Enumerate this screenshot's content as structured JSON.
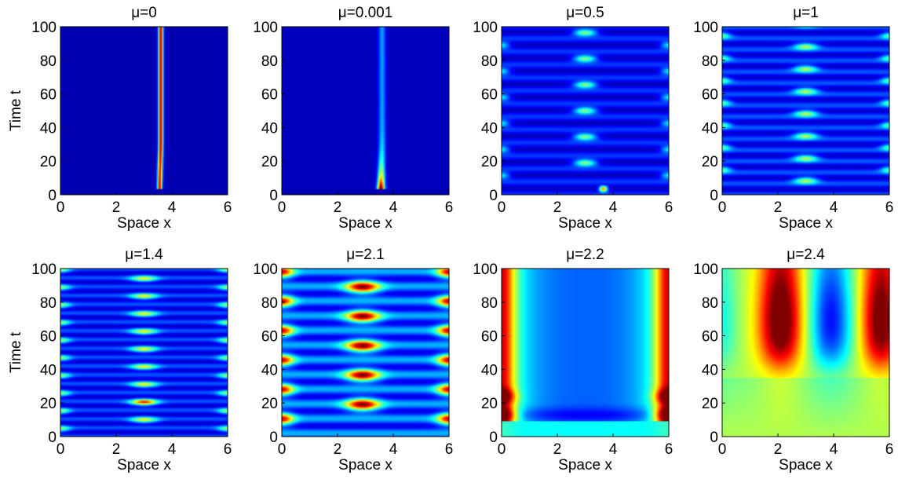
{
  "figure": {
    "xlabel": "Space x",
    "ylabel": "Time t",
    "xticks": [
      0,
      2,
      4,
      6
    ],
    "yticks": [
      0,
      20,
      40,
      60,
      80,
      100
    ],
    "xlim": [
      0,
      6
    ],
    "ylim": [
      0,
      100
    ],
    "colormap": [
      "#00008f",
      "#0000ff",
      "#00ffff",
      "#ffff00",
      "#ff0000",
      "#800000"
    ]
  },
  "chart_data": [
    {
      "type": "heatmap",
      "title": "μ=0",
      "pattern": "single_line",
      "xlim": [
        0,
        6
      ],
      "ylim": [
        0,
        100
      ],
      "x_center": 3.6,
      "t_start": 3
    },
    {
      "type": "heatmap",
      "title": "μ=0.001",
      "pattern": "faded_line",
      "xlim": [
        0,
        6
      ],
      "ylim": [
        0,
        100
      ],
      "x_center": 3.6,
      "t_start": 3
    },
    {
      "type": "heatmap",
      "title": "μ=0.5",
      "pattern": "sparse_spots",
      "xlim": [
        0,
        6
      ],
      "ylim": [
        0,
        100
      ],
      "period": 15.5
    },
    {
      "type": "heatmap",
      "title": "μ=1",
      "pattern": "spots",
      "xlim": [
        0,
        6
      ],
      "ylim": [
        0,
        100
      ],
      "period": 13.3
    },
    {
      "type": "heatmap",
      "title": "μ=1.4",
      "pattern": "dense_spots",
      "xlim": [
        0,
        6
      ],
      "ylim": [
        0,
        100
      ],
      "period": 10.5
    },
    {
      "type": "heatmap",
      "title": "μ=2.1",
      "pattern": "alternating_spots",
      "xlim": [
        0,
        6
      ],
      "ylim": [
        0,
        100
      ],
      "period": 17.5
    },
    {
      "type": "heatmap",
      "title": "μ=2.2",
      "pattern": "edge_bands",
      "xlim": [
        0,
        6
      ],
      "ylim": [
        0,
        100
      ]
    },
    {
      "type": "heatmap",
      "title": "μ=2.4",
      "pattern": "waves",
      "xlim": [
        0,
        6
      ],
      "ylim": [
        0,
        100
      ],
      "peaks_x": [
        2,
        5.6
      ],
      "trough_x": 3.8
    }
  ]
}
